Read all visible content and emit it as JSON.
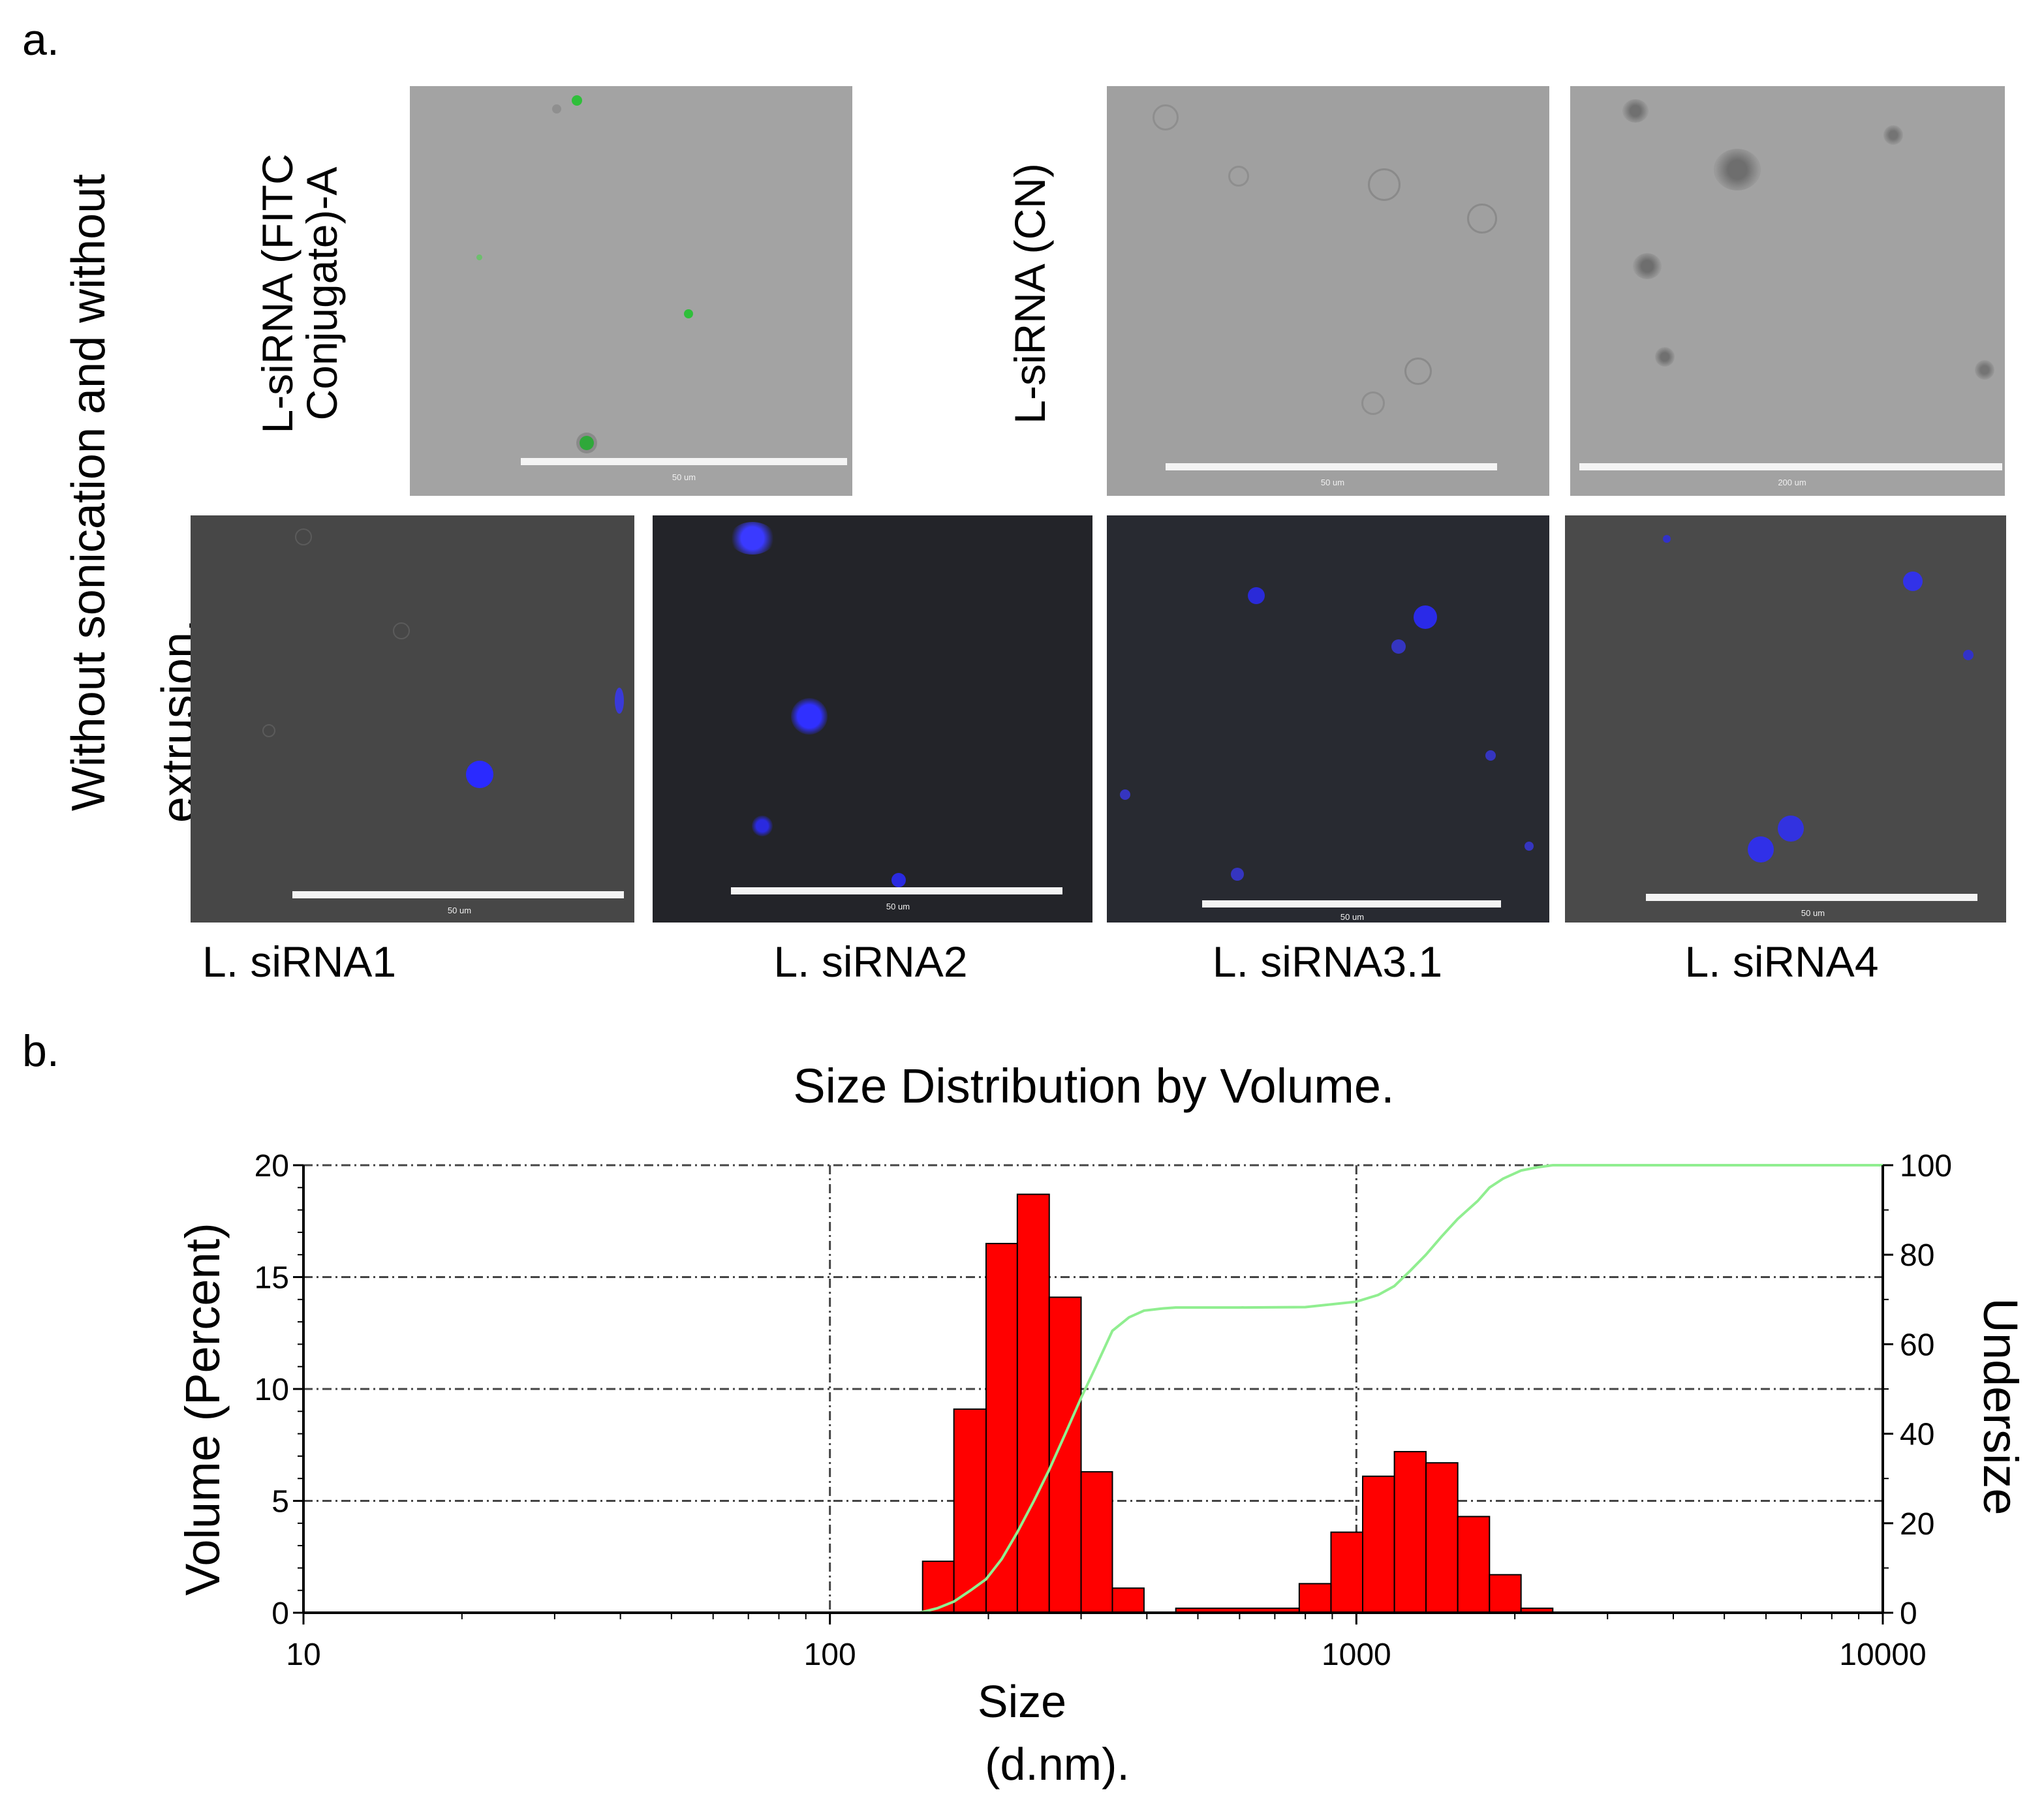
{
  "panel_a": {
    "label": "a.",
    "side_title_line1": "Without sonication and without",
    "side_title_line2": "extrusion.",
    "row_label_fitc_line1": "L-siRNA (FITC",
    "row_label_fitc_line2": "Conjugate)-A",
    "row_label_cn": "L-siRNA (CN)",
    "scale_50": "50 um",
    "scale_200": "200 um",
    "captions": [
      "L. siRNA1",
      "L. siRNA2",
      "L. siRNA3.1",
      "L. siRNA4"
    ]
  },
  "panel_b": {
    "label": "b."
  },
  "colors": {
    "bar_fill": "#ff0000",
    "bar_edge": "#000000",
    "undersize_line": "#90ee90",
    "fitc_green": "#2fbf3a",
    "dapi_blue": "#2a2aff"
  },
  "chart_data": {
    "type": "bar",
    "title": "Size Distribution by Volume.",
    "xlabel_line1": "Size",
    "xlabel_line2": "(d.nm).",
    "ylabel": "Volume (Percent)",
    "y2label": "Undersize",
    "xscale": "log",
    "xlim": [
      10,
      10000
    ],
    "ylim": [
      0,
      20
    ],
    "y2lim": [
      0,
      100
    ],
    "x_ticks": [
      10,
      100,
      1000,
      10000
    ],
    "x_tick_labels": [
      "10",
      "100",
      "1000",
      "10000"
    ],
    "y_ticks": [
      0,
      5,
      10,
      15,
      20
    ],
    "y_tick_labels": [
      "0",
      "5",
      "10",
      "15",
      "20"
    ],
    "y2_ticks": [
      0,
      20,
      40,
      60,
      80,
      100
    ],
    "y2_tick_labels": [
      "0",
      "20",
      "40",
      "60",
      "80",
      "100"
    ],
    "grid": true,
    "bars": {
      "bin_edges": [
        150,
        172,
        198,
        227,
        261,
        300,
        344,
        395,
        454,
        779,
        895,
        1028,
        1181,
        1356,
        1558,
        1790,
        2055,
        2361,
        2713
      ],
      "values": [
        2.3,
        9.1,
        16.5,
        18.7,
        14.1,
        6.3,
        1.1,
        0,
        0.2,
        1.3,
        3.6,
        6.1,
        7.2,
        6.7,
        4.3,
        1.7,
        0.2,
        0
      ]
    },
    "undersize": {
      "x": [
        10,
        148,
        160,
        172,
        185,
        198,
        212,
        227,
        244,
        261,
        280,
        300,
        320,
        344,
        370,
        395,
        430,
        454,
        600,
        800,
        1000,
        1100,
        1181,
        1268,
        1356,
        1450,
        1558,
        1700,
        1790,
        1900,
        2055,
        2200,
        2361,
        2600,
        3000,
        10000
      ],
      "y": [
        0,
        0,
        1,
        2.5,
        5,
        7.5,
        12,
        18,
        25,
        32,
        40,
        48,
        55,
        63,
        66,
        67.5,
        68,
        68.2,
        68.2,
        68.3,
        69.5,
        71,
        73,
        76.5,
        80,
        84,
        88,
        92,
        95,
        97,
        98.8,
        99.5,
        100,
        100,
        100,
        100
      ]
    }
  }
}
